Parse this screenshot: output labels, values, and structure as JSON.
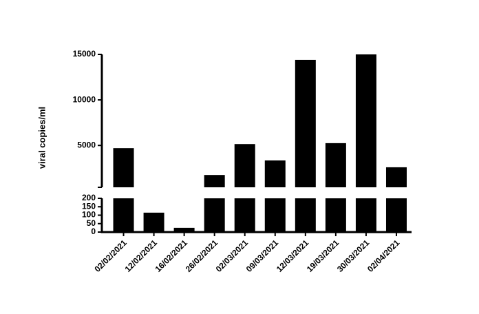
{
  "chart_data": {
    "type": "bar",
    "ylabel": "viral copies/ml",
    "categories": [
      "02/02/2021",
      "12/02/2021",
      "16/02/2021",
      "26/02/2021",
      "02/03/2021",
      "09/03/2021",
      "12/03/2021",
      "19/03/2021",
      "30/03/2021",
      "02/04/2021"
    ],
    "values": [
      4700,
      115,
      25,
      1750,
      5150,
      3350,
      14400,
      5250,
      15000,
      2600
    ],
    "color": "#000000",
    "ylim": [
      0,
      15000
    ],
    "axis_break": [
      200,
      400
    ],
    "yticks": [
      0,
      50,
      100,
      150,
      200,
      5000,
      10000,
      15000
    ]
  }
}
